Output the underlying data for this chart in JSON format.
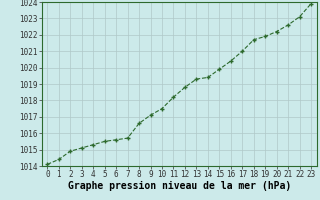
{
  "x": [
    0,
    1,
    2,
    3,
    4,
    5,
    6,
    7,
    8,
    9,
    10,
    11,
    12,
    13,
    14,
    15,
    16,
    17,
    18,
    19,
    20,
    21,
    22,
    23
  ],
  "y": [
    1014.1,
    1014.4,
    1014.9,
    1015.1,
    1015.3,
    1015.5,
    1015.6,
    1015.7,
    1016.6,
    1017.1,
    1017.5,
    1018.2,
    1018.8,
    1019.3,
    1019.4,
    1019.9,
    1020.4,
    1021.0,
    1021.7,
    1021.9,
    1022.2,
    1022.6,
    1023.1,
    1023.9
  ],
  "ylim": [
    1014,
    1024
  ],
  "xlim": [
    -0.5,
    23.5
  ],
  "xlabel": "Graphe pression niveau de la mer (hPa)",
  "line_color": "#2d6a2d",
  "marker": "+",
  "bg_color": "#cceaea",
  "grid_color": "#b0c8c8",
  "yticks": [
    1014,
    1015,
    1016,
    1017,
    1018,
    1019,
    1020,
    1021,
    1022,
    1023,
    1024
  ],
  "xticks": [
    0,
    1,
    2,
    3,
    4,
    5,
    6,
    7,
    8,
    9,
    10,
    11,
    12,
    13,
    14,
    15,
    16,
    17,
    18,
    19,
    20,
    21,
    22,
    23
  ],
  "tick_fontsize": 5.5,
  "xlabel_fontsize": 7.0,
  "linewidth": 0.8,
  "markersize": 3.5,
  "border_color": "#2d6a2d"
}
